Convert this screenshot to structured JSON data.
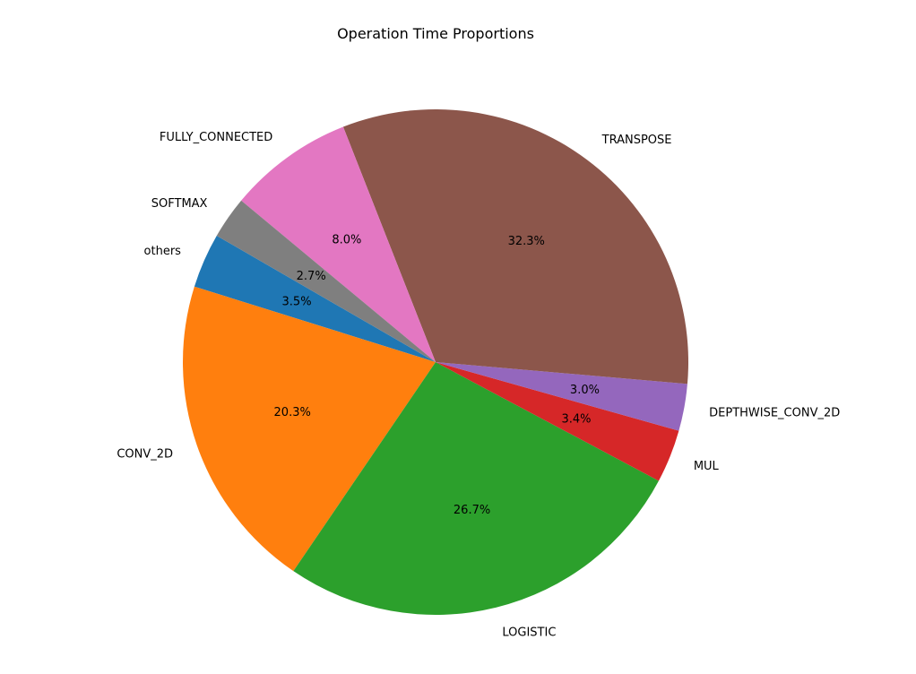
{
  "chart_data": {
    "type": "pie",
    "title": "Operation Time Proportions",
    "start_angle_deg": 150,
    "direction": "counterclockwise",
    "slices": [
      {
        "label": "others",
        "value": 3.5,
        "pct_label": "3.5%",
        "color": "#1f77b4"
      },
      {
        "label": "CONV_2D",
        "value": 20.3,
        "pct_label": "20.3%",
        "color": "#ff7f0e"
      },
      {
        "label": "LOGISTIC",
        "value": 26.7,
        "pct_label": "26.7%",
        "color": "#2ca02c"
      },
      {
        "label": "MUL",
        "value": 3.4,
        "pct_label": "3.4%",
        "color": "#d62728"
      },
      {
        "label": "DEPTHWISE_CONV_2D",
        "value": 3.0,
        "pct_label": "3.0%",
        "color": "#9467bd"
      },
      {
        "label": "TRANSPOSE",
        "value": 32.3,
        "pct_label": "32.3%",
        "color": "#8c564b"
      },
      {
        "label": "FULLY_CONNECTED",
        "value": 8.0,
        "pct_label": "8.0%",
        "color": "#e377c2"
      },
      {
        "label": "SOFTMAX",
        "value": 2.7,
        "pct_label": "2.7%",
        "color": "#7f7f7f"
      }
    ]
  }
}
